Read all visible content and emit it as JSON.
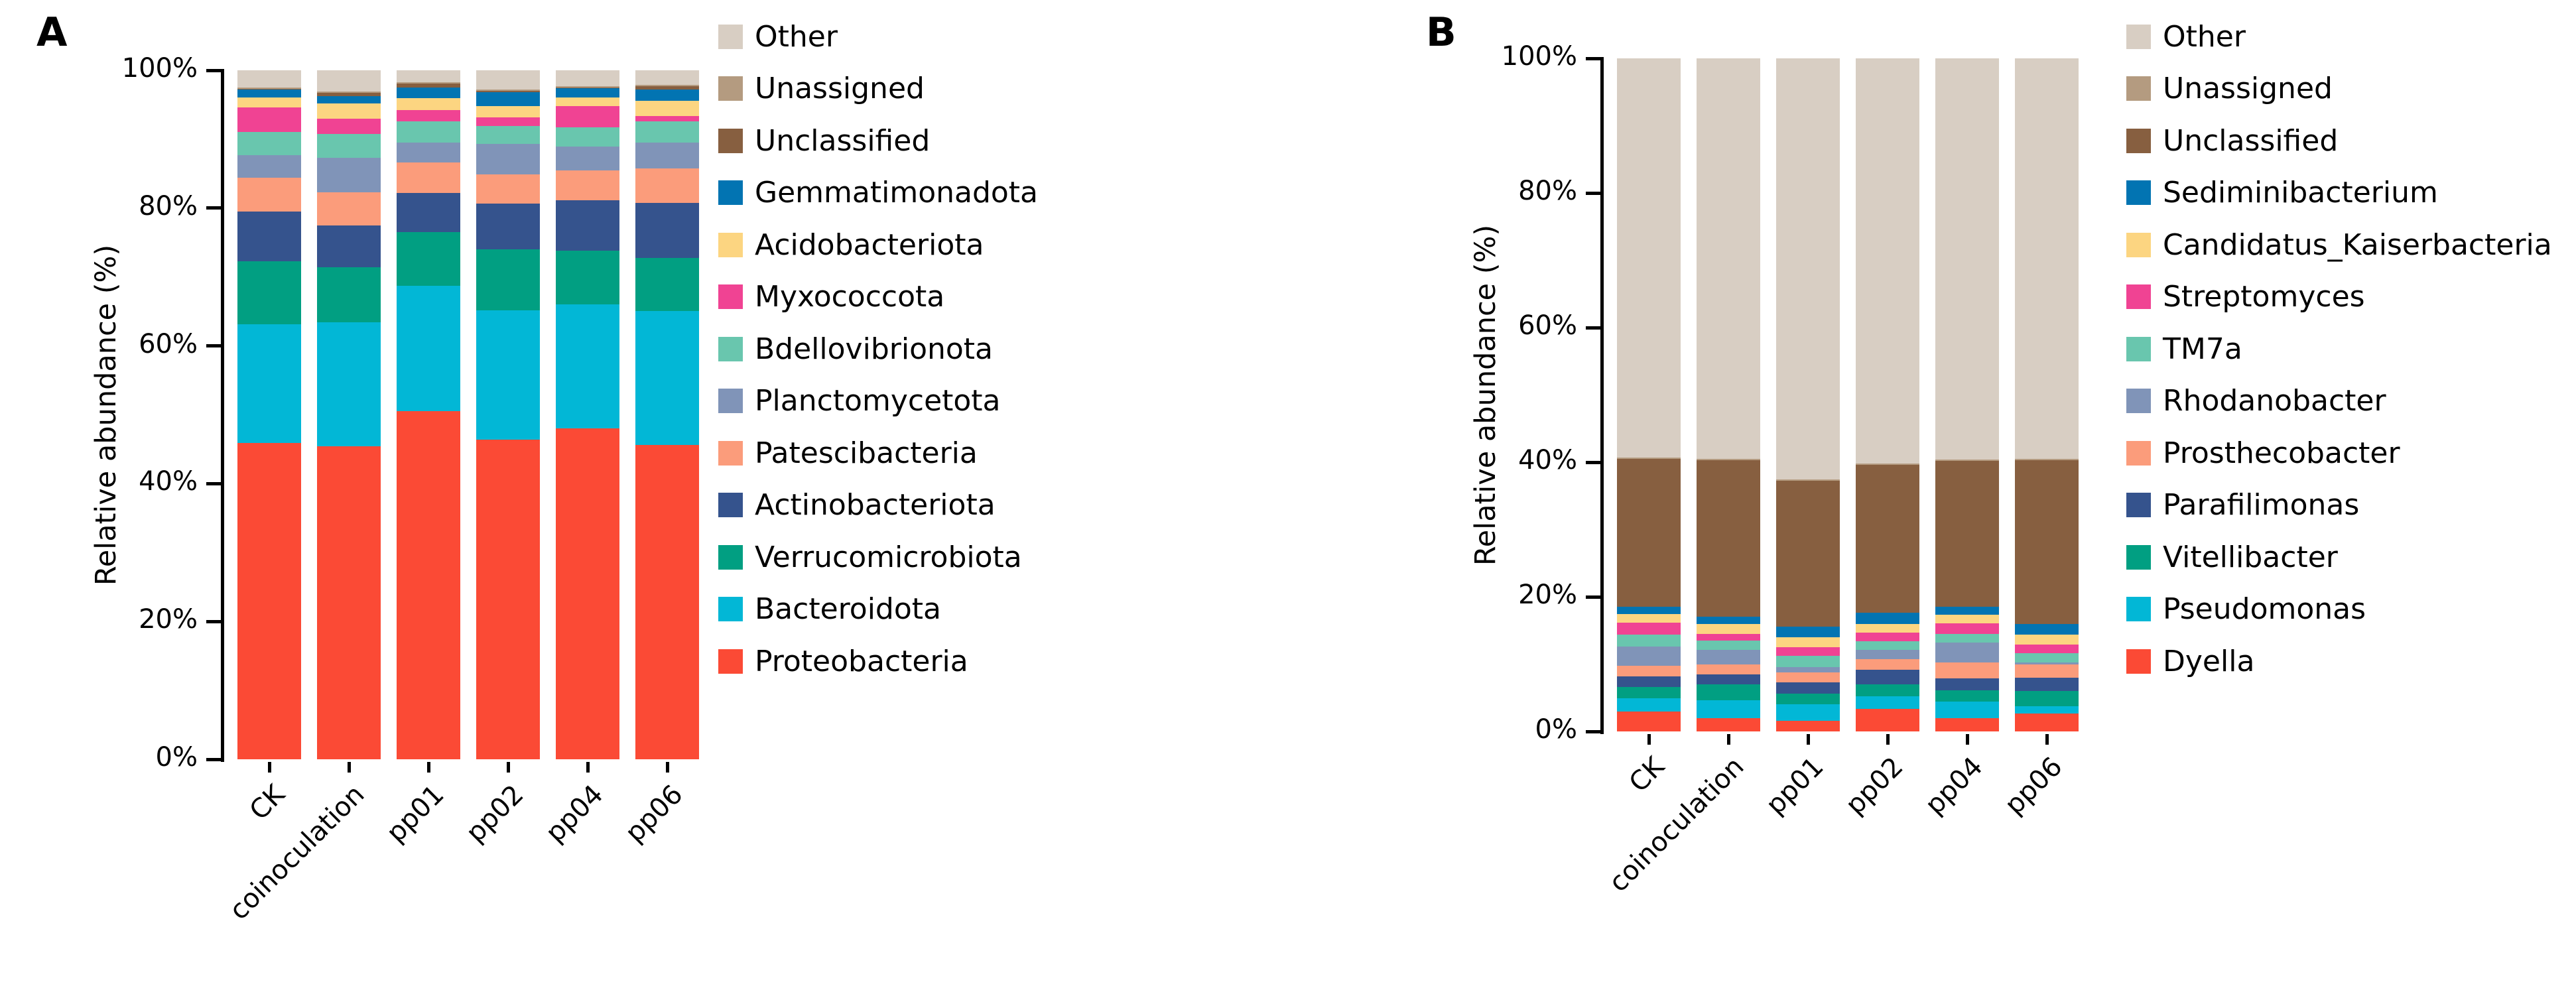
{
  "figure": {
    "panel_a_label": "A",
    "panel_b_label": "B",
    "y_axis_title": "Relative abundance (%)"
  },
  "chart_data": [
    {
      "type": "bar",
      "panel": "A",
      "ylabel": "Relative abundance (%)",
      "ylim": [
        0,
        100
      ],
      "yticks": [
        "0%",
        "20%",
        "40%",
        "60%",
        "80%",
        "100%"
      ],
      "grid": false,
      "legend_position": "right",
      "categories": [
        "CK",
        "coinoculation",
        "pp01",
        "pp02",
        "pp04",
        "pp06"
      ],
      "series": [
        {
          "name": "Proteobacteria",
          "color": "#fb4a35",
          "values": [
            45.9,
            45.4,
            50.5,
            46.4,
            48.0,
            45.6
          ]
        },
        {
          "name": "Bacteroidota",
          "color": "#02b7d6",
          "values": [
            17.2,
            18.0,
            18.2,
            18.8,
            18.0,
            19.5
          ]
        },
        {
          "name": "Verrucomicrobiota",
          "color": "#019f82",
          "values": [
            9.2,
            8.0,
            7.8,
            8.8,
            7.8,
            7.7
          ]
        },
        {
          "name": "Actinobacteriota",
          "color": "#35538d",
          "values": [
            7.2,
            6.1,
            5.7,
            6.7,
            7.3,
            8.0
          ]
        },
        {
          "name": "Patescibacteria",
          "color": "#fb9c7b",
          "values": [
            4.9,
            4.8,
            4.4,
            4.2,
            4.4,
            5.0
          ]
        },
        {
          "name": "Planctomycetota",
          "color": "#8094b8",
          "values": [
            3.3,
            5.0,
            2.9,
            4.4,
            3.4,
            3.7
          ]
        },
        {
          "name": "Bdellovibrionota",
          "color": "#69c6ae",
          "values": [
            3.4,
            3.5,
            3.1,
            2.6,
            2.8,
            3.1
          ]
        },
        {
          "name": "Myxococcota",
          "color": "#f04393",
          "values": [
            3.5,
            2.2,
            1.6,
            1.3,
            3.1,
            0.8
          ]
        },
        {
          "name": "Acidobacteriota",
          "color": "#fcd581",
          "values": [
            1.5,
            2.2,
            1.8,
            1.6,
            1.3,
            2.2
          ]
        },
        {
          "name": "Gemmatimonadota",
          "color": "#0274b2",
          "values": [
            1.1,
            1.1,
            1.5,
            2.0,
            1.3,
            1.6
          ]
        },
        {
          "name": "Unclassified",
          "color": "#875f40",
          "values": [
            0.15,
            0.4,
            0.6,
            0.25,
            0.15,
            0.5
          ]
        },
        {
          "name": "Unassigned",
          "color": "#b49b80",
          "values": [
            0.15,
            0.2,
            0.2,
            0.15,
            0.15,
            0.2
          ]
        },
        {
          "name": "Other",
          "color": "#d8cec3",
          "values": [
            2.5,
            3.1,
            1.7,
            2.8,
            2.3,
            2.1
          ]
        }
      ]
    },
    {
      "type": "bar",
      "panel": "B",
      "ylabel": "Relative abundance (%)",
      "ylim": [
        0,
        100
      ],
      "yticks": [
        "0%",
        "20%",
        "40%",
        "60%",
        "80%",
        "100%"
      ],
      "grid": false,
      "legend_position": "right",
      "categories": [
        "CK",
        "coinoculation",
        "pp01",
        "pp02",
        "pp04",
        "pp06"
      ],
      "series": [
        {
          "name": "Dyella",
          "color": "#fb4a35",
          "values": [
            3.0,
            2.0,
            1.6,
            3.4,
            2.0,
            2.7
          ]
        },
        {
          "name": "Pseudomonas",
          "color": "#02b7d6",
          "values": [
            1.9,
            2.6,
            2.4,
            1.8,
            2.4,
            1.0
          ]
        },
        {
          "name": "Vitellibacter",
          "color": "#019f82",
          "values": [
            1.7,
            2.4,
            1.6,
            1.8,
            1.7,
            2.3
          ]
        },
        {
          "name": "Parafilimonas",
          "color": "#35538d",
          "values": [
            1.6,
            1.5,
            1.7,
            2.2,
            1.8,
            2.0
          ]
        },
        {
          "name": "Prosthecobacter",
          "color": "#fb9c7b",
          "values": [
            1.6,
            1.5,
            1.5,
            1.5,
            2.3,
            2.0
          ]
        },
        {
          "name": "Rhodanobacter",
          "color": "#8094b8",
          "values": [
            2.8,
            2.1,
            0.8,
            1.4,
            3.0,
            0.3
          ]
        },
        {
          "name": "TM7a",
          "color": "#69c6ae",
          "values": [
            1.8,
            1.4,
            1.6,
            1.3,
            1.3,
            1.3
          ]
        },
        {
          "name": "Streptomyces",
          "color": "#f04393",
          "values": [
            1.8,
            1.0,
            1.3,
            1.3,
            1.6,
            1.3
          ]
        },
        {
          "name": "Candidatus_Kaiserbacteria",
          "color": "#fcd581",
          "values": [
            1.2,
            1.5,
            1.5,
            1.3,
            1.2,
            1.5
          ]
        },
        {
          "name": "Sediminibacterium",
          "color": "#0274b2",
          "values": [
            1.1,
            1.1,
            1.6,
            1.6,
            1.2,
            1.6
          ]
        },
        {
          "name": "Unclassified",
          "color": "#875f40",
          "values": [
            22.0,
            23.2,
            21.6,
            22.0,
            21.7,
            24.3
          ]
        },
        {
          "name": "Unassigned",
          "color": "#b49b80",
          "values": [
            0.2,
            0.2,
            0.2,
            0.2,
            0.2,
            0.2
          ]
        },
        {
          "name": "Other",
          "color": "#d8cec3",
          "values": [
            59.3,
            59.5,
            62.6,
            60.2,
            59.6,
            59.5
          ]
        }
      ]
    }
  ]
}
